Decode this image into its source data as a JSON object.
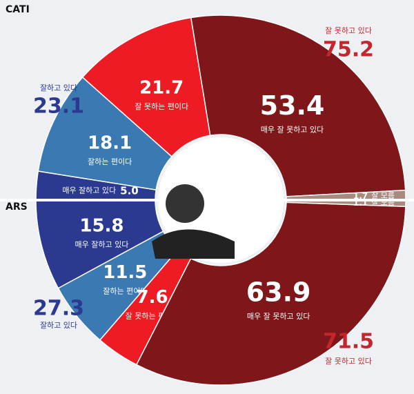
{
  "chart_data": [
    {
      "type": "donut",
      "title": "CATI",
      "categories": [
        "매우 잘하고 있다",
        "잘하는 편이다",
        "잘 못하는 편이다",
        "매우 잘 못하고 있다",
        "잘 모름"
      ],
      "values": [
        5.0,
        18.1,
        21.7,
        53.4,
        1.7
      ],
      "value_labels": [
        "5.0",
        "18.1",
        "21.7",
        "53.4",
        "1.7"
      ],
      "colors": [
        "#2b3990",
        "#3b79b3",
        "#ed1c24",
        "#7f1619",
        "#a88b7e"
      ],
      "groups": [
        {
          "label": "잘하고 있다",
          "value": 23.1,
          "color": "#2b3990"
        },
        {
          "label": "잘 못하고 있다",
          "value": 75.2,
          "color": "#c1272d"
        }
      ]
    },
    {
      "type": "donut",
      "title": "ARS",
      "categories": [
        "매우 잘하고 있다",
        "잘하는 편이다",
        "잘 못하는 편이다",
        "매우 잘 못하고 있다",
        "잘 모름"
      ],
      "values": [
        15.8,
        11.5,
        7.6,
        63.9,
        1.1
      ],
      "value_labels": [
        "15.8",
        "11.5",
        "7.6",
        "63.9",
        "1.1"
      ],
      "colors": [
        "#2b3990",
        "#3b79b3",
        "#ed1c24",
        "#7f1619",
        "#a88b7e"
      ],
      "groups": [
        {
          "label": "잘하고 있다",
          "value": 27.3,
          "color": "#2b3990"
        },
        {
          "label": "잘 못하고 있다",
          "value": 71.5,
          "color": "#c1272d"
        }
      ]
    }
  ]
}
